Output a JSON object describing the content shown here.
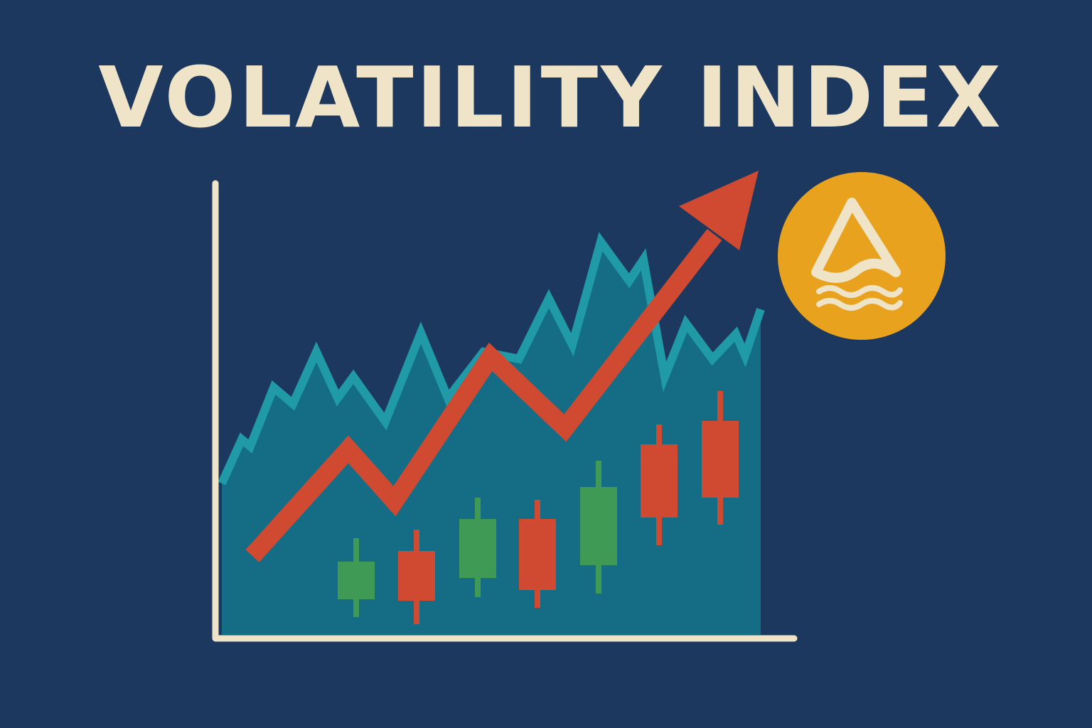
{
  "header": {
    "title": "VOLATILITY INDEX"
  }
}
